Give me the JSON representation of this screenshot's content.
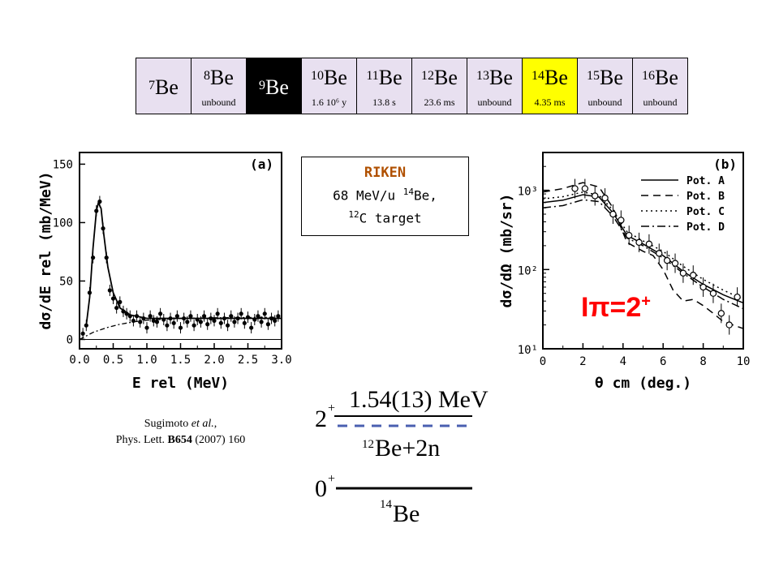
{
  "isotopes": [
    {
      "mass": "7",
      "symbol": "Be",
      "sub": "",
      "style": "plain"
    },
    {
      "mass": "8",
      "symbol": "Be",
      "sub": "unbound",
      "style": "plain"
    },
    {
      "mass": "9",
      "symbol": "Be",
      "sub": "",
      "style": "dark"
    },
    {
      "mass": "10",
      "symbol": "Be",
      "sub": "1.6 10⁶ y",
      "style": "plain"
    },
    {
      "mass": "11",
      "symbol": "Be",
      "sub": "13.8 s",
      "style": "plain"
    },
    {
      "mass": "12",
      "symbol": "Be",
      "sub": "23.6 ms",
      "style": "plain"
    },
    {
      "mass": "13",
      "symbol": "Be",
      "sub": "unbound",
      "style": "plain"
    },
    {
      "mass": "14",
      "symbol": "Be",
      "sub": "4.35 ms",
      "style": "highlight"
    },
    {
      "mass": "15",
      "symbol": "Be",
      "sub": "unbound",
      "style": "plain"
    },
    {
      "mass": "16",
      "symbol": "Be",
      "sub": "unbound",
      "style": "plain"
    }
  ],
  "riken_box": {
    "title": "RIKEN",
    "line1_pre": "68 MeV/u ",
    "line1_mass": "14",
    "line1_post": "Be,",
    "line2_mass": "12",
    "line2_post": "C target"
  },
  "citation": {
    "authors": "Sugimoto",
    "etal": "et al.",
    "after_etal": ",",
    "journal": "Phys. Lett. ",
    "volume": "B654",
    "rest": " (2007) 160"
  },
  "jpi_label": {
    "base": "Iπ=2",
    "sup": "+"
  },
  "level_scheme": {
    "excited": {
      "spin": "2",
      "parity": "+",
      "energy": "1.54(13) MeV"
    },
    "threshold": {
      "mass": "12",
      "label": "Be+2n"
    },
    "ground": {
      "spin": "0",
      "parity": "+",
      "mass": "14",
      "label": "Be"
    },
    "threshold_color": "#4a5fb0"
  },
  "chart_data": [
    {
      "type": "scatter",
      "panel": "(a)",
      "xlabel": "E rel  (MeV)",
      "ylabel": "dσ/dE rel  (mb/MeV)",
      "xlim": [
        0,
        3.0
      ],
      "ylim": [
        -8,
        160
      ],
      "xticks": [
        "0.0",
        "0.5",
        "1.0",
        "1.5",
        "2.0",
        "2.5",
        "3.0"
      ],
      "yticks": [
        "0",
        "50",
        "100",
        "150"
      ],
      "points": [
        [
          0.05,
          5
        ],
        [
          0.1,
          12
        ],
        [
          0.15,
          40
        ],
        [
          0.2,
          70
        ],
        [
          0.25,
          110
        ],
        [
          0.3,
          118
        ],
        [
          0.35,
          95
        ],
        [
          0.4,
          70
        ],
        [
          0.45,
          42
        ],
        [
          0.5,
          35
        ],
        [
          0.55,
          27
        ],
        [
          0.6,
          32
        ],
        [
          0.65,
          24
        ],
        [
          0.7,
          22
        ],
        [
          0.75,
          20
        ],
        [
          0.8,
          16
        ],
        [
          0.85,
          20
        ],
        [
          0.9,
          15
        ],
        [
          0.95,
          18
        ],
        [
          1.0,
          10
        ],
        [
          1.05,
          20
        ],
        [
          1.1,
          16
        ],
        [
          1.15,
          15
        ],
        [
          1.2,
          22
        ],
        [
          1.25,
          17
        ],
        [
          1.3,
          12
        ],
        [
          1.35,
          18
        ],
        [
          1.4,
          14
        ],
        [
          1.45,
          20
        ],
        [
          1.5,
          10
        ],
        [
          1.55,
          18
        ],
        [
          1.6,
          15
        ],
        [
          1.65,
          20
        ],
        [
          1.7,
          12
        ],
        [
          1.75,
          17
        ],
        [
          1.8,
          15
        ],
        [
          1.85,
          20
        ],
        [
          1.9,
          13
        ],
        [
          1.95,
          18
        ],
        [
          2.0,
          16
        ],
        [
          2.05,
          22
        ],
        [
          2.1,
          14
        ],
        [
          2.15,
          18
        ],
        [
          2.2,
          12
        ],
        [
          2.25,
          20
        ],
        [
          2.3,
          15
        ],
        [
          2.35,
          18
        ],
        [
          2.4,
          22
        ],
        [
          2.45,
          14
        ],
        [
          2.5,
          19
        ],
        [
          2.55,
          10
        ],
        [
          2.6,
          17
        ],
        [
          2.65,
          20
        ],
        [
          2.7,
          15
        ],
        [
          2.75,
          22
        ],
        [
          2.8,
          13
        ],
        [
          2.85,
          18
        ],
        [
          2.9,
          16
        ],
        [
          2.95,
          20
        ]
      ],
      "fit_solid": [
        [
          0.1,
          12
        ],
        [
          0.15,
          36
        ],
        [
          0.2,
          78
        ],
        [
          0.25,
          110
        ],
        [
          0.28,
          117
        ],
        [
          0.32,
          112
        ],
        [
          0.36,
          90
        ],
        [
          0.42,
          62
        ],
        [
          0.5,
          40
        ],
        [
          0.6,
          27
        ],
        [
          0.75,
          21
        ],
        [
          1.0,
          18
        ],
        [
          1.5,
          18
        ],
        [
          2.0,
          18
        ],
        [
          2.5,
          18
        ],
        [
          3.0,
          18
        ]
      ],
      "fit_dashed": [
        [
          0.0,
          0
        ],
        [
          0.2,
          6
        ],
        [
          0.4,
          10
        ],
        [
          0.6,
          13
        ],
        [
          0.8,
          15
        ],
        [
          1.0,
          16.5
        ],
        [
          1.5,
          18
        ],
        [
          2.0,
          18.5
        ],
        [
          3.0,
          19
        ]
      ]
    },
    {
      "type": "line",
      "panel": "(b)",
      "xlabel": "θ cm  (deg.)",
      "ylabel": "dσ/dΩ  (mb/sr)",
      "xlim": [
        0,
        10
      ],
      "ylim": [
        10,
        3000
      ],
      "yscale": "log",
      "xticks": [
        "0",
        "2",
        "4",
        "6",
        "8",
        "10"
      ],
      "yticks": [
        "10¹",
        "10²",
        "10³"
      ],
      "legend": "top-right",
      "series": [
        {
          "name": "Pot. A",
          "dash": "none",
          "values": [
            [
              0,
              700
            ],
            [
              1,
              750
            ],
            [
              2,
              880
            ],
            [
              2.8,
              820
            ],
            [
              3.5,
              520
            ],
            [
              4.2,
              270
            ],
            [
              5,
              210
            ],
            [
              6,
              150
            ],
            [
              7,
              95
            ],
            [
              8,
              65
            ],
            [
              9,
              48
            ],
            [
              10,
              38
            ]
          ]
        },
        {
          "name": "Pot. B",
          "dash": "9 6",
          "values": [
            [
              0,
              950
            ],
            [
              1,
              1050
            ],
            [
              2,
              1250
            ],
            [
              2.8,
              1100
            ],
            [
              3.5,
              600
            ],
            [
              4.2,
              220
            ],
            [
              5,
              170
            ],
            [
              5.5,
              150
            ],
            [
              6,
              100
            ],
            [
              6.5,
              55
            ],
            [
              7,
              40
            ],
            [
              7.5,
              42
            ],
            [
              8,
              35
            ],
            [
              8.5,
              28
            ],
            [
              9,
              22
            ],
            [
              10,
              18
            ]
          ]
        },
        {
          "name": "Pot. C",
          "dash": "2 4",
          "values": [
            [
              0,
              780
            ],
            [
              1,
              830
            ],
            [
              2,
              950
            ],
            [
              2.8,
              870
            ],
            [
              3.5,
              560
            ],
            [
              4.2,
              300
            ],
            [
              5,
              230
            ],
            [
              6,
              170
            ],
            [
              7,
              110
            ],
            [
              8,
              75
            ],
            [
              9,
              55
            ],
            [
              10,
              42
            ]
          ]
        },
        {
          "name": "Pot. D",
          "dash": "10 4 2 4",
          "values": [
            [
              0,
              600
            ],
            [
              1,
              640
            ],
            [
              2,
              760
            ],
            [
              2.8,
              720
            ],
            [
              3.5,
              470
            ],
            [
              4.2,
              250
            ],
            [
              5,
              200
            ],
            [
              6,
              140
            ],
            [
              7,
              90
            ],
            [
              8,
              60
            ],
            [
              9,
              42
            ],
            [
              10,
              32
            ]
          ]
        }
      ],
      "points": [
        [
          1.6,
          1050
        ],
        [
          2.1,
          1050
        ],
        [
          2.6,
          850
        ],
        [
          3.1,
          800
        ],
        [
          3.5,
          500
        ],
        [
          3.9,
          420
        ],
        [
          4.3,
          270
        ],
        [
          4.8,
          220
        ],
        [
          5.3,
          210
        ],
        [
          5.8,
          160
        ],
        [
          6.2,
          130
        ],
        [
          6.6,
          120
        ],
        [
          7.0,
          90
        ],
        [
          7.5,
          85
        ],
        [
          8.0,
          60
        ],
        [
          8.5,
          50
        ],
        [
          8.9,
          28
        ],
        [
          9.3,
          20
        ],
        [
          9.7,
          45
        ]
      ]
    }
  ]
}
